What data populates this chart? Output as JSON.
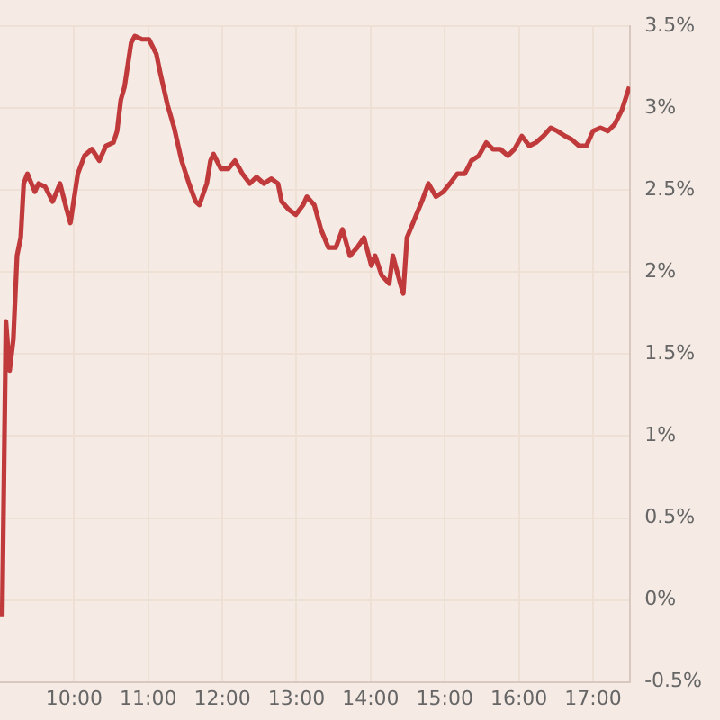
{
  "chart_data": {
    "type": "line",
    "x": [
      9.03,
      9.08,
      9.13,
      9.18,
      9.23,
      9.28,
      9.32,
      9.37,
      9.47,
      9.52,
      9.61,
      9.71,
      9.81,
      9.9,
      9.95,
      10.05,
      10.14,
      10.24,
      10.34,
      10.43,
      10.53,
      10.58,
      10.63,
      10.68,
      10.72,
      10.77,
      10.82,
      10.92,
      11.01,
      11.11,
      11.16,
      11.26,
      11.35,
      11.45,
      11.55,
      11.64,
      11.69,
      11.79,
      11.84,
      11.88,
      11.98,
      12.08,
      12.17,
      12.27,
      12.37,
      12.46,
      12.56,
      12.66,
      12.75,
      12.8,
      12.9,
      12.99,
      13.09,
      13.14,
      13.24,
      13.33,
      13.43,
      13.53,
      13.62,
      13.72,
      13.82,
      13.91,
      14.01,
      14.06,
      14.15,
      14.25,
      14.3,
      14.4,
      14.44,
      14.49,
      14.59,
      14.69,
      14.78,
      14.88,
      14.98,
      15.07,
      15.17,
      15.27,
      15.36,
      15.46,
      15.56,
      15.65,
      15.75,
      15.85,
      15.94,
      16.04,
      16.14,
      16.23,
      16.33,
      16.43,
      16.52,
      16.62,
      16.71,
      16.81,
      16.91,
      17.0,
      17.1,
      17.2,
      17.29,
      17.39,
      17.49
    ],
    "series": [
      {
        "color": "#c0393b",
        "values": [
          -0.1,
          1.7,
          1.4,
          1.59,
          2.1,
          2.21,
          2.54,
          2.6,
          2.49,
          2.54,
          2.52,
          2.43,
          2.54,
          2.38,
          2.3,
          2.6,
          2.71,
          2.75,
          2.68,
          2.77,
          2.79,
          2.86,
          3.05,
          3.13,
          3.25,
          3.4,
          3.44,
          3.42,
          3.42,
          3.33,
          3.22,
          3.02,
          2.88,
          2.68,
          2.54,
          2.43,
          2.41,
          2.54,
          2.68,
          2.72,
          2.63,
          2.63,
          2.68,
          2.6,
          2.54,
          2.58,
          2.54,
          2.57,
          2.54,
          2.43,
          2.38,
          2.35,
          2.41,
          2.46,
          2.41,
          2.26,
          2.15,
          2.15,
          2.26,
          2.1,
          2.15,
          2.21,
          2.04,
          2.1,
          1.98,
          1.93,
          2.1,
          1.93,
          1.87,
          2.21,
          2.32,
          2.43,
          2.54,
          2.46,
          2.49,
          2.54,
          2.6,
          2.6,
          2.68,
          2.71,
          2.79,
          2.75,
          2.75,
          2.71,
          2.75,
          2.83,
          2.77,
          2.79,
          2.83,
          2.88,
          2.86,
          2.83,
          2.81,
          2.77,
          2.77,
          2.86,
          2.88,
          2.86,
          2.9,
          2.99,
          3.13
        ]
      }
    ],
    "xlim": [
      9,
      17.5
    ],
    "xticks": [
      {
        "value": 10,
        "label": "10:00"
      },
      {
        "value": 11,
        "label": "11:00"
      },
      {
        "value": 12,
        "label": "12:00"
      },
      {
        "value": 13,
        "label": "13:00"
      },
      {
        "value": 14,
        "label": "14:00"
      },
      {
        "value": 15,
        "label": "15:00"
      },
      {
        "value": 16,
        "label": "16:00"
      },
      {
        "value": 17,
        "label": "17:00"
      }
    ],
    "ylim": [
      -0.5,
      3.5
    ],
    "yticks": [
      {
        "value": -0.5,
        "label": "-0.5%"
      },
      {
        "value": 0,
        "label": "0%"
      },
      {
        "value": 0.5,
        "label": "0.5%"
      },
      {
        "value": 1,
        "label": "1%"
      },
      {
        "value": 1.5,
        "label": "1.5%"
      },
      {
        "value": 2,
        "label": "2%"
      },
      {
        "value": 2.5,
        "label": "2.5%"
      },
      {
        "value": 3,
        "label": "3%"
      },
      {
        "value": 3.5,
        "label": "3.5%"
      }
    ],
    "grid": true,
    "legend": false,
    "marker": "none",
    "line_style": "solid"
  }
}
